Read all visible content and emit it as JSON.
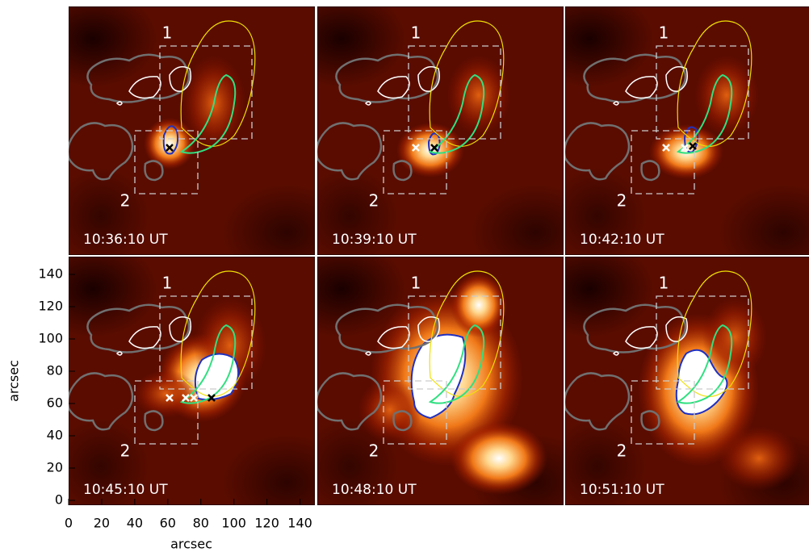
{
  "chart_data": {
    "type": "image-grid",
    "xlabel": "arcsec",
    "ylabel": "arcsec",
    "xlim": [
      0,
      149
    ],
    "ylim": [
      -3,
      151
    ],
    "xticks": [
      0,
      20,
      40,
      60,
      80,
      100,
      120,
      140
    ],
    "yticks": [
      0,
      20,
      40,
      60,
      80,
      100,
      120,
      140
    ],
    "box_labels": [
      "1",
      "2"
    ],
    "panels": [
      {
        "time": "10:36:10 UT"
      },
      {
        "time": "10:39:10 UT"
      },
      {
        "time": "10:42:10 UT"
      },
      {
        "time": "10:45:10 UT"
      },
      {
        "time": "10:48:10 UT"
      },
      {
        "time": "10:51:10 UT"
      }
    ]
  }
}
